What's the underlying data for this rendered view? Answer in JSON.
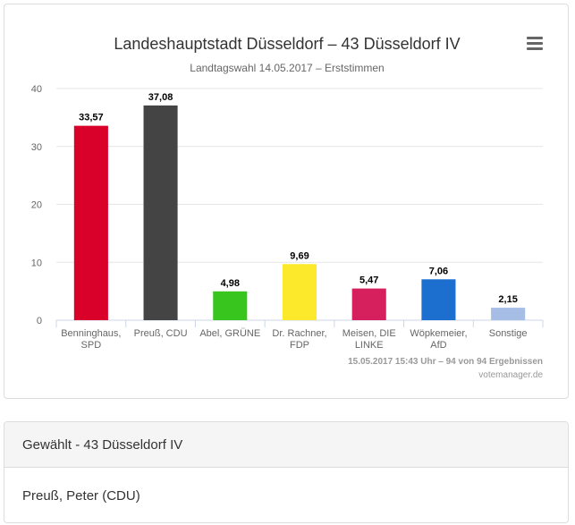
{
  "chart_data": {
    "type": "bar",
    "title": "Landeshauptstadt Düsseldorf – 43 Düsseldorf IV",
    "subtitle": "Landtagswahl 14.05.2017 – Erststimmen",
    "categories": [
      [
        "Benninghaus,",
        "SPD"
      ],
      [
        "Preuß, CDU"
      ],
      [
        "Abel, GRÜNE"
      ],
      [
        "Dr. Rachner,",
        "FDP"
      ],
      [
        "Meisen, DIE",
        "LINKE"
      ],
      [
        "Wöpkemeier,",
        "AfD"
      ],
      [
        "Sonstige"
      ]
    ],
    "values": [
      33.57,
      37.08,
      4.98,
      9.69,
      5.47,
      7.06,
      2.15
    ],
    "value_labels": [
      "33,57",
      "37,08",
      "4,98",
      "9,69",
      "5,47",
      "7,06",
      "2,15"
    ],
    "colors": [
      "#d90029",
      "#444444",
      "#37c51e",
      "#fde92b",
      "#d6205e",
      "#1c6fce",
      "#a6bde5"
    ],
    "ylim": [
      0,
      40
    ],
    "yticks": [
      0,
      10,
      20,
      30,
      40
    ],
    "grid": true,
    "legend": "none",
    "credits": [
      "15.05.2017 15:43 Uhr – 94 von 94 Ergebnissen",
      "votemanager.de"
    ]
  },
  "result": {
    "heading": "Gewählt - 43 Düsseldorf IV",
    "winner": "Preuß, Peter (CDU)"
  }
}
